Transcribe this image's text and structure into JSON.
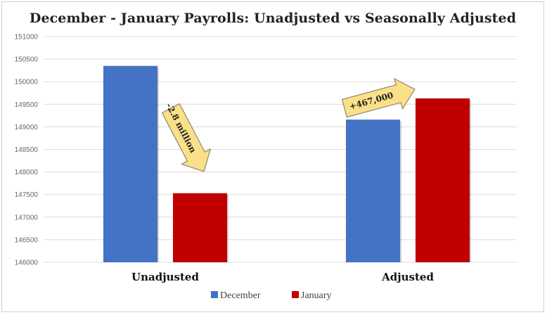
{
  "chart_data": {
    "type": "bar",
    "title": "December - January Payrolls: Unadjusted vs Seasonally Adjusted",
    "categories": [
      "Unadjusted",
      "Adjusted"
    ],
    "series": [
      {
        "name": "December",
        "values": [
          150350,
          149160
        ]
      },
      {
        "name": "January",
        "values": [
          147530,
          149630
        ]
      }
    ],
    "ylim": [
      146000,
      151000
    ],
    "yticks": [
      146000,
      146500,
      147000,
      147500,
      148000,
      148500,
      149000,
      149500,
      150000,
      150500,
      151000
    ],
    "grid": true,
    "legend_position": "bottom",
    "annotations": [
      {
        "text": "-2.8 million",
        "category": "Unadjusted",
        "direction": "down"
      },
      {
        "text": "+467,000",
        "category": "Adjusted",
        "direction": "up"
      }
    ],
    "colors": {
      "December": "#4472c4",
      "January": "#c00000",
      "arrow_fill": "#fbe08a",
      "arrow_stroke": "#8a8a6a"
    }
  }
}
